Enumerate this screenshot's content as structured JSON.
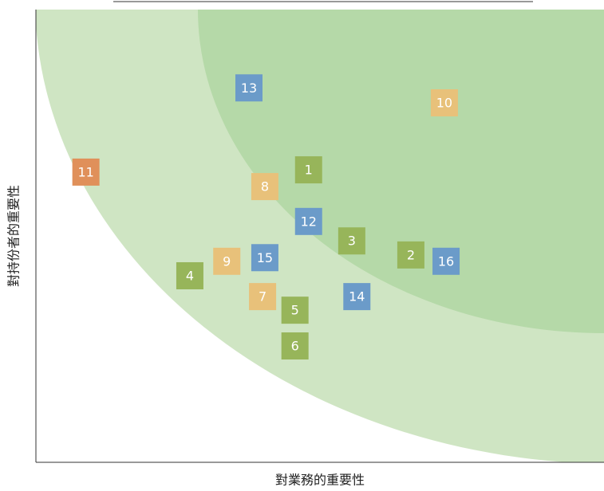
{
  "chart_data": {
    "type": "scatter",
    "x_label": "對業務的重要性",
    "y_label": "對持份者的重要性",
    "xlim": [
      0,
      100
    ],
    "ylim": [
      0,
      100
    ],
    "points": [
      {
        "label": "1",
        "x": 48.0,
        "y": 64.6,
        "color": "#97b55a"
      },
      {
        "label": "2",
        "x": 66.0,
        "y": 45.8,
        "color": "#97b55a"
      },
      {
        "label": "3",
        "x": 55.6,
        "y": 48.9,
        "color": "#97b55a"
      },
      {
        "label": "4",
        "x": 27.1,
        "y": 41.2,
        "color": "#97b55a"
      },
      {
        "label": "5",
        "x": 45.6,
        "y": 33.6,
        "color": "#97b55a"
      },
      {
        "label": "6",
        "x": 45.6,
        "y": 25.7,
        "color": "#97b55a"
      },
      {
        "label": "7",
        "x": 39.9,
        "y": 36.6,
        "color": "#e8c17a"
      },
      {
        "label": "8",
        "x": 40.3,
        "y": 60.9,
        "color": "#e8c17a"
      },
      {
        "label": "9",
        "x": 33.6,
        "y": 44.4,
        "color": "#e8c17a"
      },
      {
        "label": "10",
        "x": 71.9,
        "y": 79.4,
        "color": "#e8c17a"
      },
      {
        "label": "11",
        "x": 8.8,
        "y": 64.1,
        "color": "#e0905a"
      },
      {
        "label": "12",
        "x": 48.0,
        "y": 53.2,
        "color": "#6b9bc9"
      },
      {
        "label": "13",
        "x": 37.5,
        "y": 82.7,
        "color": "#6b9bc9"
      },
      {
        "label": "14",
        "x": 56.5,
        "y": 36.6,
        "color": "#6b9bc9"
      },
      {
        "label": "15",
        "x": 40.3,
        "y": 45.2,
        "color": "#6b9bc9"
      },
      {
        "label": "16",
        "x": 72.2,
        "y": 44.4,
        "color": "#6b9bc9"
      }
    ]
  }
}
